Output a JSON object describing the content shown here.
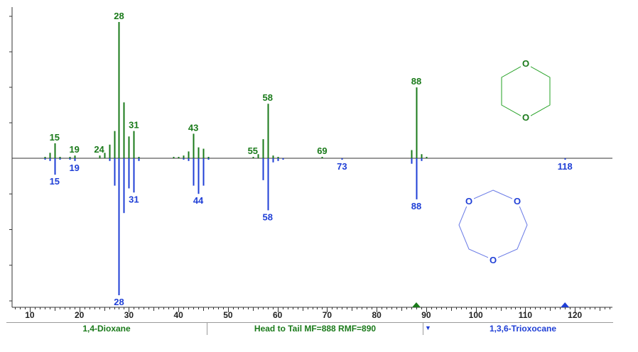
{
  "chart_data": {
    "type": "bar",
    "subtype": "head-to-tail mass spectrum",
    "xlim": [
      7,
      127
    ],
    "ylim": [
      -100,
      100
    ],
    "x_ticks": [
      10,
      20,
      30,
      40,
      50,
      60,
      70,
      80,
      90,
      100,
      110,
      120
    ],
    "series": [
      {
        "name": "1,4-Dioxane",
        "color": "#1a7a1a",
        "direction": "up",
        "peaks": [
          {
            "mz": 13,
            "intensity": 1
          },
          {
            "mz": 14,
            "intensity": 4
          },
          {
            "mz": 15,
            "intensity": 11
          },
          {
            "mz": 16,
            "intensity": 1
          },
          {
            "mz": 18,
            "intensity": 1
          },
          {
            "mz": 19,
            "intensity": 2
          },
          {
            "mz": 24,
            "intensity": 2
          },
          {
            "mz": 25,
            "intensity": 4
          },
          {
            "mz": 26,
            "intensity": 10
          },
          {
            "mz": 27,
            "intensity": 20
          },
          {
            "mz": 28,
            "intensity": 100
          },
          {
            "mz": 29,
            "intensity": 41
          },
          {
            "mz": 30,
            "intensity": 16
          },
          {
            "mz": 31,
            "intensity": 20
          },
          {
            "mz": 32,
            "intensity": 1
          },
          {
            "mz": 39,
            "intensity": 1
          },
          {
            "mz": 40,
            "intensity": 1
          },
          {
            "mz": 41,
            "intensity": 2
          },
          {
            "mz": 42,
            "intensity": 5
          },
          {
            "mz": 43,
            "intensity": 18
          },
          {
            "mz": 44,
            "intensity": 8
          },
          {
            "mz": 45,
            "intensity": 7
          },
          {
            "mz": 46,
            "intensity": 1
          },
          {
            "mz": 55,
            "intensity": 1
          },
          {
            "mz": 56,
            "intensity": 3
          },
          {
            "mz": 57,
            "intensity": 14
          },
          {
            "mz": 58,
            "intensity": 40
          },
          {
            "mz": 59,
            "intensity": 2
          },
          {
            "mz": 60,
            "intensity": 1
          },
          {
            "mz": 69,
            "intensity": 1
          },
          {
            "mz": 87,
            "intensity": 6
          },
          {
            "mz": 88,
            "intensity": 52
          },
          {
            "mz": 89,
            "intensity": 3
          },
          {
            "mz": 90,
            "intensity": 1
          }
        ],
        "labels": [
          15,
          19,
          24,
          28,
          31,
          43,
          55,
          58,
          69,
          88
        ]
      },
      {
        "name": "1,3,6-Trioxocane",
        "color": "#1f3fd6",
        "direction": "down",
        "peaks": [
          {
            "mz": 13,
            "intensity": 1
          },
          {
            "mz": 14,
            "intensity": 2
          },
          {
            "mz": 15,
            "intensity": 12
          },
          {
            "mz": 16,
            "intensity": 1
          },
          {
            "mz": 18,
            "intensity": 1
          },
          {
            "mz": 19,
            "intensity": 2
          },
          {
            "mz": 26,
            "intensity": 2
          },
          {
            "mz": 27,
            "intensity": 20
          },
          {
            "mz": 28,
            "intensity": 100
          },
          {
            "mz": 29,
            "intensity": 40
          },
          {
            "mz": 30,
            "intensity": 22
          },
          {
            "mz": 31,
            "intensity": 25
          },
          {
            "mz": 32,
            "intensity": 2
          },
          {
            "mz": 41,
            "intensity": 1
          },
          {
            "mz": 42,
            "intensity": 2
          },
          {
            "mz": 43,
            "intensity": 20
          },
          {
            "mz": 44,
            "intensity": 26
          },
          {
            "mz": 45,
            "intensity": 20
          },
          {
            "mz": 46,
            "intensity": 1
          },
          {
            "mz": 57,
            "intensity": 16
          },
          {
            "mz": 58,
            "intensity": 38
          },
          {
            "mz": 59,
            "intensity": 3
          },
          {
            "mz": 60,
            "intensity": 2
          },
          {
            "mz": 61,
            "intensity": 1
          },
          {
            "mz": 73,
            "intensity": 1
          },
          {
            "mz": 87,
            "intensity": 4
          },
          {
            "mz": 88,
            "intensity": 30
          },
          {
            "mz": 89,
            "intensity": 2
          },
          {
            "mz": 118,
            "intensity": 1
          }
        ],
        "labels": [
          15,
          19,
          28,
          31,
          44,
          58,
          73,
          88,
          118
        ]
      }
    ],
    "markers": [
      {
        "mz": 88,
        "color": "#1a7a1a"
      },
      {
        "mz": 118,
        "color": "#1f3fd6"
      }
    ]
  },
  "structures": {
    "top": {
      "atoms": [
        "O",
        "O"
      ],
      "color": "#22a022"
    },
    "bottom": {
      "atoms": [
        "O",
        "O",
        "O"
      ],
      "color": "#5b6de0"
    }
  },
  "status": {
    "left": "1,4-Dioxane",
    "middle": "Head to Tail MF=888 RMF=890",
    "right": "1,3,6-Trioxocane",
    "arrow": "▼"
  }
}
